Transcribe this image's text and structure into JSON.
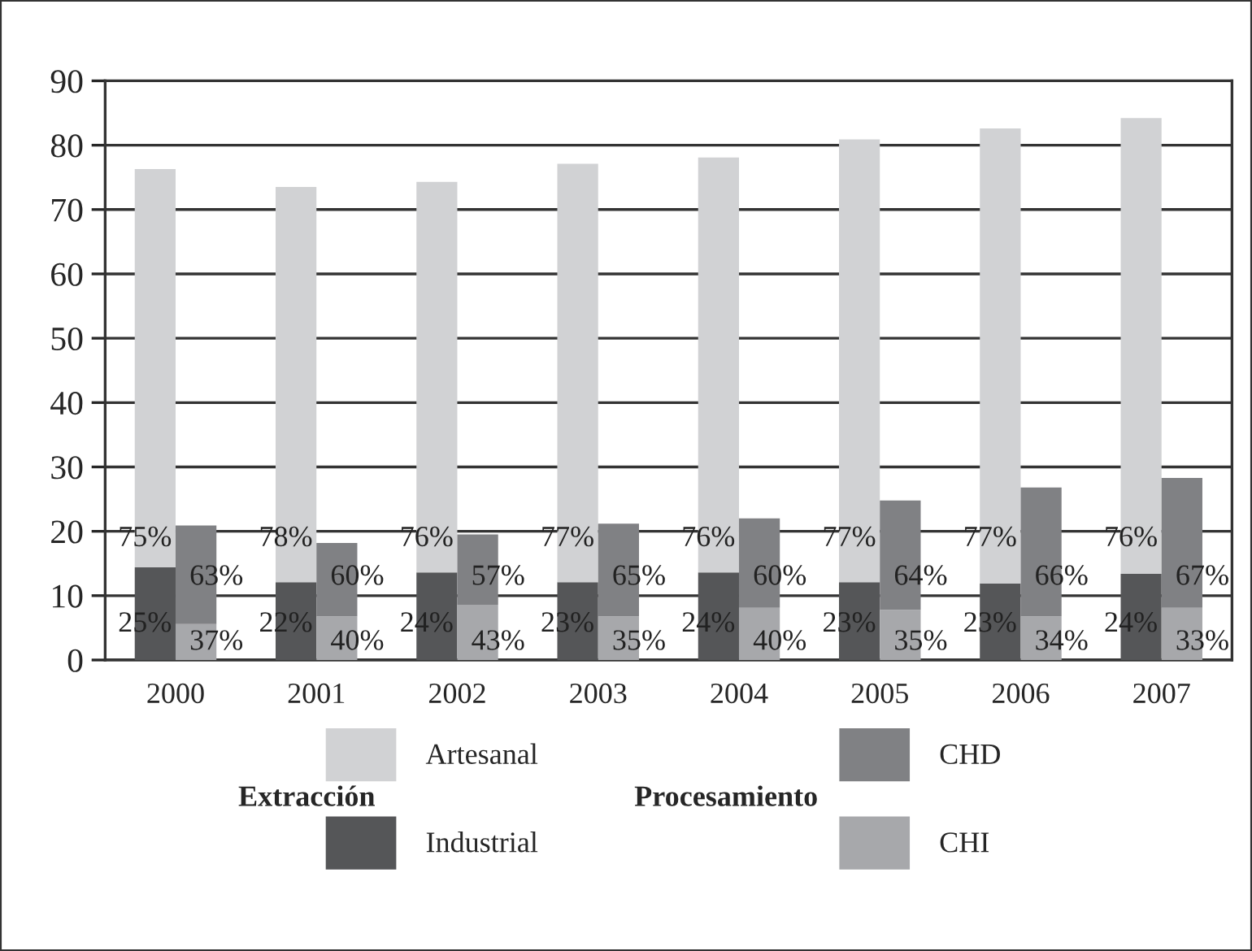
{
  "chart_data": [
    {
      "type": "bar",
      "stacked": true,
      "categories": [
        "2000",
        "2001",
        "2002",
        "2003",
        "2004",
        "2005",
        "2006",
        "2007"
      ],
      "series": [
        {
          "name": "Industrial",
          "color": "#555658",
          "values": [
            14.4,
            12.1,
            13.6,
            12.1,
            13.6,
            12.1,
            11.9,
            13.4
          ]
        },
        {
          "name": "Artesanal",
          "color": "#d1d2d4",
          "values": [
            61.9,
            61.4,
            60.7,
            65.0,
            64.5,
            68.8,
            70.7,
            70.8
          ]
        }
      ],
      "annotations": [
        "Extracción",
        {
          "text": "25%",
          "x": "2000",
          "y": 5.5
        },
        {
          "text": "75%",
          "x": "2000",
          "y": 18.8
        },
        {
          "text": "22%",
          "x": "2001",
          "y": 5.5
        },
        {
          "text": "78%",
          "x": "2001",
          "y": 18.8
        },
        {
          "text": "24%",
          "x": "2002",
          "y": 5.5
        },
        {
          "text": "76%",
          "x": "2002",
          "y": 18.8
        },
        {
          "text": "23%",
          "x": "2003",
          "y": 5.5
        },
        {
          "text": "77%",
          "x": "2003",
          "y": 18.8
        },
        {
          "text": "24%",
          "x": "2004",
          "y": 5.5
        },
        {
          "text": "76%",
          "x": "2004",
          "y": 18.8
        },
        {
          "text": "23%",
          "x": "2005",
          "y": 5.5
        },
        {
          "text": "77%",
          "x": "2005",
          "y": 18.8
        },
        {
          "text": "23%",
          "x": "2006",
          "y": 5.5
        },
        {
          "text": "77%",
          "x": "2006",
          "y": 18.8
        },
        {
          "text": "24%",
          "x": "2007",
          "y": 5.5
        },
        {
          "text": "76%",
          "x": "2007",
          "y": 18.8
        }
      ],
      "ylim": [
        0,
        90
      ],
      "yticks": [
        0,
        10,
        20,
        30,
        40,
        50,
        60,
        70,
        80,
        90
      ],
      "grid": "y",
      "legend": "bottom"
    },
    {
      "type": "bar",
      "stacked": true,
      "categories": [
        "2000",
        "2001",
        "2002",
        "2003",
        "2004",
        "2005",
        "2006",
        "2007"
      ],
      "series": [
        {
          "name": "CHI",
          "color": "#a7a8ab",
          "values": [
            5.6,
            6.8,
            8.6,
            6.8,
            8.1,
            7.8,
            6.8,
            8.1
          ]
        },
        {
          "name": "CHD",
          "color": "#808184",
          "values": [
            15.3,
            11.4,
            10.9,
            14.4,
            13.9,
            17.0,
            20.0,
            20.2
          ]
        }
      ],
      "annotations": [
        "Procesamiento",
        {
          "text": "37%",
          "x": "2000",
          "y": 2.7
        },
        {
          "text": "63%",
          "x": "2000",
          "y": 12.8
        },
        {
          "text": "40%",
          "x": "2001",
          "y": 2.7
        },
        {
          "text": "60%",
          "x": "2001",
          "y": 12.8
        },
        {
          "text": "43%",
          "x": "2002",
          "y": 2.7
        },
        {
          "text": "57%",
          "x": "2002",
          "y": 12.8
        },
        {
          "text": "35%",
          "x": "2003",
          "y": 2.7
        },
        {
          "text": "65%",
          "x": "2003",
          "y": 12.8
        },
        {
          "text": "40%",
          "x": "2004",
          "y": 2.7
        },
        {
          "text": "60%",
          "x": "2004",
          "y": 12.8
        },
        {
          "text": "35%",
          "x": "2005",
          "y": 2.7
        },
        {
          "text": "64%",
          "x": "2005",
          "y": 12.8
        },
        {
          "text": "34%",
          "x": "2006",
          "y": 2.7
        },
        {
          "text": "66%",
          "x": "2006",
          "y": 12.8
        },
        {
          "text": "33%",
          "x": "2007",
          "y": 2.7
        },
        {
          "text": "67%",
          "x": "2007",
          "y": 12.8
        }
      ],
      "ylim": [
        0,
        90
      ],
      "yticks": [
        0,
        10,
        20,
        30,
        40,
        50,
        60,
        70,
        80,
        90
      ],
      "tick_labels": false,
      "legend": "bottom"
    }
  ]
}
